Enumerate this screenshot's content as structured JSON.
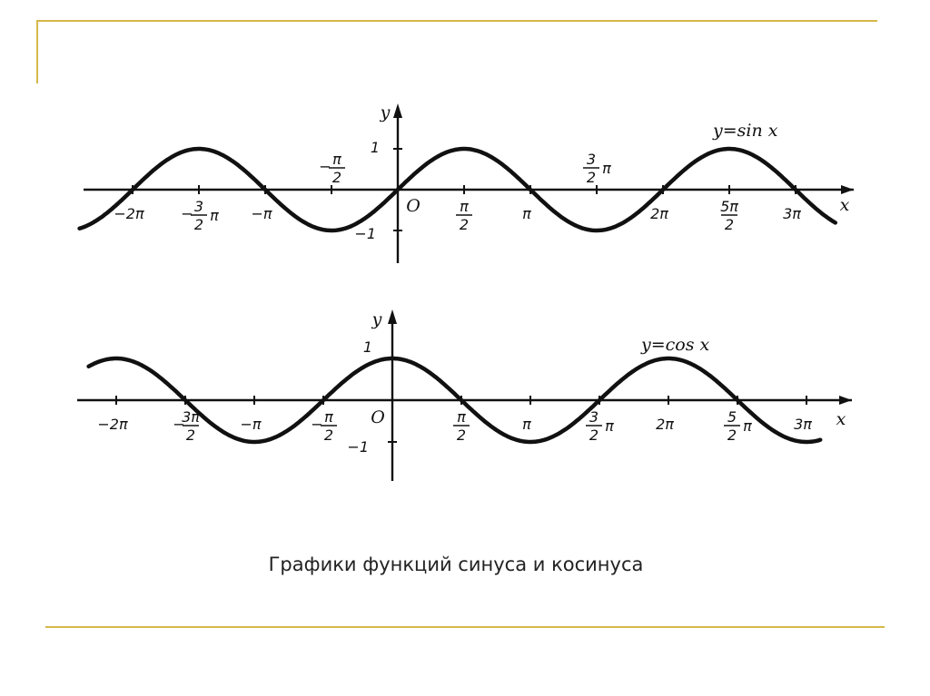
{
  "caption": "Графики функций синуса и косинуса",
  "chart_data": [
    {
      "type": "line",
      "function": "sin",
      "curve_label": "y=sin x",
      "xlabel": "x",
      "ylabel": "y",
      "origin_label": "O",
      "xlim": [
        -2.4,
        3.3
      ],
      "ylim": [
        -1,
        1
      ],
      "y_tick_labels": [
        {
          "value": 1,
          "text": "1"
        },
        {
          "value": -1,
          "text": "−1"
        }
      ],
      "x_tick_labels": [
        {
          "value": -2,
          "text": "−2π",
          "side": "below"
        },
        {
          "value": -1.5,
          "text": "−",
          "frac_num": "3",
          "frac_den": "2",
          "suffix": "π",
          "side": "below"
        },
        {
          "value": -1,
          "text": "−π",
          "side": "below"
        },
        {
          "value": -0.5,
          "text": "−",
          "frac_num": "π",
          "frac_den": "2",
          "suffix": "",
          "side": "above"
        },
        {
          "value": 0.5,
          "text": "",
          "frac_num": "π",
          "frac_den": "2",
          "suffix": "",
          "side": "below"
        },
        {
          "value": 1,
          "text": "π",
          "side": "below"
        },
        {
          "value": 1.5,
          "text": "",
          "frac_num": "3",
          "frac_den": "2",
          "suffix": "π",
          "side": "above"
        },
        {
          "value": 2,
          "text": "2π",
          "side": "below"
        },
        {
          "value": 2.5,
          "text": "",
          "frac_num": "5π",
          "frac_den": "2",
          "suffix": "",
          "side": "below"
        },
        {
          "value": 3,
          "text": "3π",
          "side": "below"
        }
      ]
    },
    {
      "type": "line",
      "function": "cos",
      "curve_label": "y=cos x",
      "xlabel": "x",
      "ylabel": "y",
      "origin_label": "O",
      "xlim": [
        -2.2,
        3.1
      ],
      "ylim": [
        -1,
        1
      ],
      "y_tick_labels": [
        {
          "value": 1,
          "text": "1"
        },
        {
          "value": -1,
          "text": "−1"
        }
      ],
      "x_tick_labels": [
        {
          "value": -2,
          "text": "−2π",
          "side": "below"
        },
        {
          "value": -1.5,
          "text": "−",
          "frac_num": "3π",
          "frac_den": "2",
          "suffix": "",
          "side": "below"
        },
        {
          "value": -1,
          "text": "−π",
          "side": "below"
        },
        {
          "value": -0.5,
          "text": "−",
          "frac_num": "π",
          "frac_den": "2",
          "suffix": "",
          "side": "below"
        },
        {
          "value": 0.5,
          "text": "",
          "frac_num": "π",
          "frac_den": "2",
          "suffix": "",
          "side": "below"
        },
        {
          "value": 1,
          "text": "π",
          "side": "below"
        },
        {
          "value": 1.5,
          "text": "",
          "frac_num": "3",
          "frac_den": "2",
          "suffix": "π",
          "side": "below"
        },
        {
          "value": 2,
          "text": "2π",
          "side": "below"
        },
        {
          "value": 2.5,
          "text": "",
          "frac_num": "5",
          "frac_den": "2",
          "suffix": "π",
          "side": "below"
        },
        {
          "value": 3,
          "text": "3π",
          "side": "below"
        }
      ]
    }
  ]
}
